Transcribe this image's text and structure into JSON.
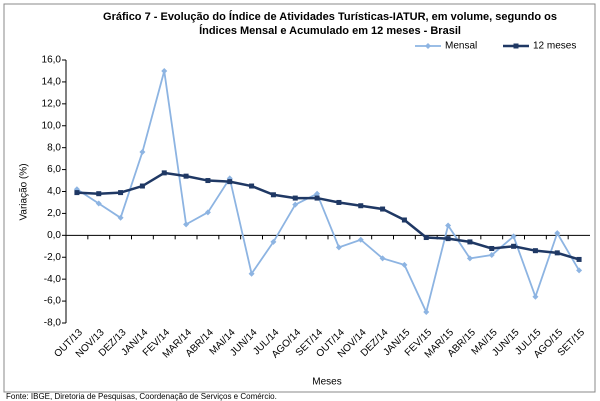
{
  "chart_data": {
    "type": "line",
    "title": [
      "Gráfico 7 - Evolução do Índice de Atividades Turísticas-IATUR, em volume, segundo os",
      "Índices Mensal e Acumulado em 12 meses - Brasil"
    ],
    "x_label": "Meses",
    "y_label": "Variação (%)",
    "source": "Fonte: IBGE, Diretoria de Pesquisas, Coordenação de Serviços e Comércio.",
    "categories": [
      "OUT/13",
      "NOV/13",
      "DEZ/13",
      "JAN/14",
      "FEV/14",
      "MAR/14",
      "ABR/14",
      "MAI/14",
      "JUN/14",
      "JUL/14",
      "AGO/14",
      "SET/14",
      "OUT/14",
      "NOV/14",
      "DEZ/14",
      "JAN/15",
      "FEV/15",
      "MAR/15",
      "ABR/15",
      "MAI/15",
      "JUN/15",
      "JUL/15",
      "AGO/15",
      "SET/15"
    ],
    "series": [
      {
        "name": "Mensal",
        "color": "#8db4e2",
        "marker": "diamond",
        "values": [
          4.2,
          2.9,
          1.6,
          7.6,
          15.0,
          1.0,
          2.1,
          5.2,
          -3.5,
          -0.6,
          2.8,
          3.8,
          -1.1,
          -0.4,
          -2.1,
          -2.7,
          -7.0,
          0.9,
          -2.1,
          -1.8,
          -0.1,
          -5.6,
          0.2,
          -3.2
        ]
      },
      {
        "name": "12 meses",
        "color": "#1f3864",
        "marker": "square",
        "values": [
          3.9,
          3.8,
          3.9,
          4.5,
          5.7,
          5.4,
          5.0,
          4.9,
          4.5,
          3.7,
          3.4,
          3.4,
          3.0,
          2.7,
          2.4,
          1.4,
          -0.2,
          -0.3,
          -0.6,
          -1.2,
          -1.0,
          -1.4,
          -1.6,
          -2.2
        ]
      }
    ],
    "ylim": [
      -8,
      16
    ],
    "yticks": [
      {
        "value": 16,
        "label": "16,0"
      },
      {
        "value": 14,
        "label": "14,0"
      },
      {
        "value": 12,
        "label": "12,0"
      },
      {
        "value": 10,
        "label": "10,0"
      },
      {
        "value": 8,
        "label": "8,0"
      },
      {
        "value": 6,
        "label": "6,0"
      },
      {
        "value": 4,
        "label": "4,0"
      },
      {
        "value": 2,
        "label": "2,0"
      },
      {
        "value": 0,
        "label": "0,0"
      },
      {
        "value": -2,
        "label": "-2,0"
      },
      {
        "value": -4,
        "label": "-4,0"
      },
      {
        "value": -6,
        "label": "-6,0"
      },
      {
        "value": -8,
        "label": "-8,0"
      }
    ],
    "grid": false,
    "legend": "top-right"
  }
}
